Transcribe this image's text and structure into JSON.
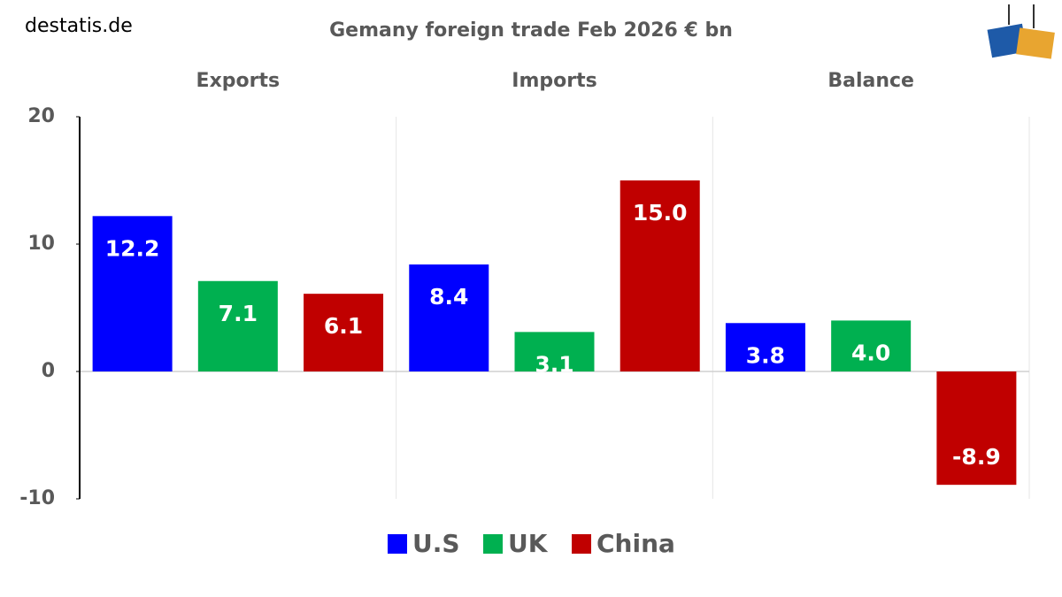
{
  "source": "destatis.de",
  "chart_data": {
    "type": "bar",
    "title": "Gemany foreign trade Feb 2026 € bn",
    "categories": [
      "Exports",
      "Imports",
      "Balance"
    ],
    "series": [
      {
        "name": "U.S",
        "color": "#0000ff",
        "values": [
          12.2,
          8.4,
          3.8
        ],
        "value_labels": [
          "12.2",
          "8.4",
          "3.8"
        ]
      },
      {
        "name": "UK",
        "color": "#00b050",
        "values": [
          7.1,
          3.1,
          4.0
        ],
        "value_labels": [
          "7.1",
          "3.1",
          "4.0"
        ]
      },
      {
        "name": "China",
        "color": "#c00000",
        "values": [
          6.1,
          15.0,
          -8.9
        ],
        "value_labels": [
          "6.1",
          "15.0",
          "-8.9"
        ]
      }
    ],
    "ylim": [
      -10,
      20
    ],
    "yticks": [
      -10,
      0,
      10,
      20
    ],
    "legend": "bottom"
  }
}
